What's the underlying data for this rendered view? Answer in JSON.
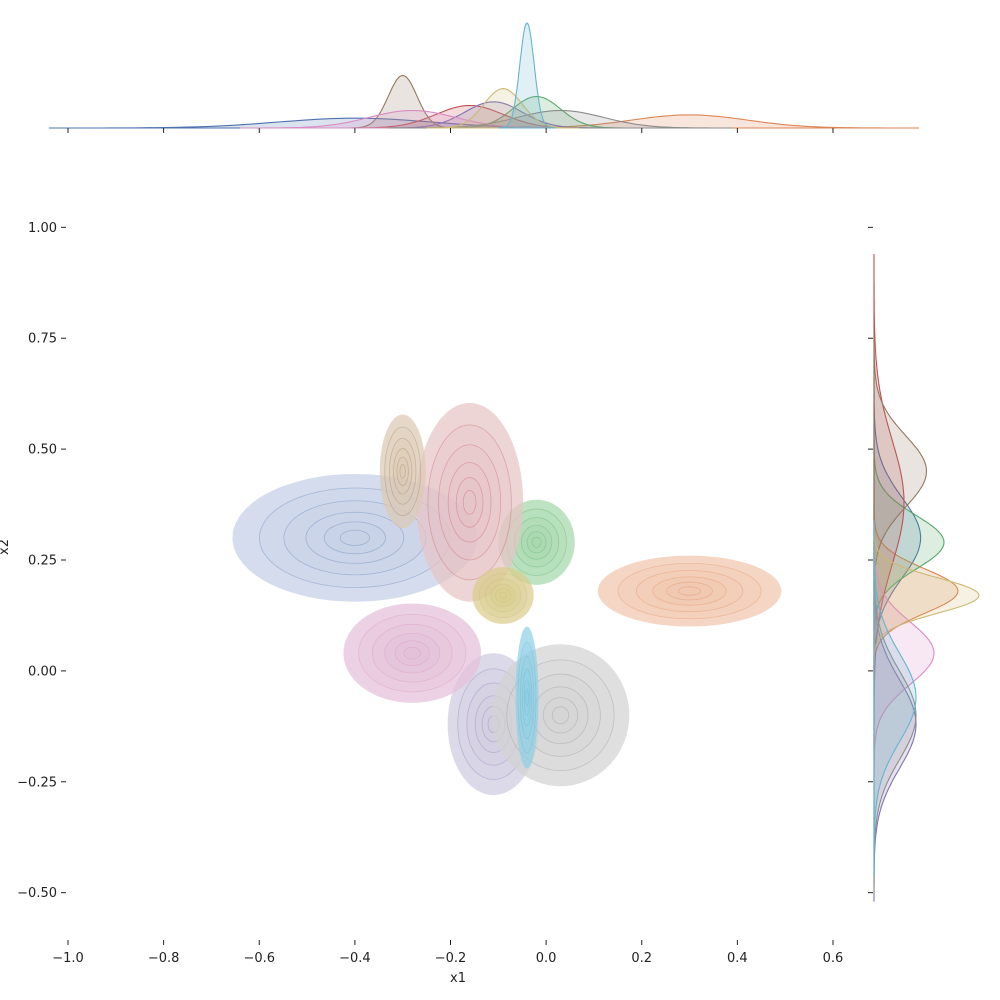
{
  "chart_data": {
    "type": "kde-joint",
    "title": "",
    "xlabel": "x1",
    "ylabel": "x2",
    "xlim": [
      -1.0,
      0.6
    ],
    "ylim": [
      -0.6,
      1.1
    ],
    "x_ticks": [
      -1.0,
      -0.8,
      -0.6,
      -0.4,
      -0.2,
      0.0,
      0.2,
      0.4,
      0.6
    ],
    "x_tick_labels": [
      "−1.0",
      "−0.8",
      "−0.6",
      "−0.4",
      "−0.2",
      "0.0",
      "0.2",
      "0.4",
      "0.6"
    ],
    "y_ticks": [
      1.0,
      0.75,
      0.5,
      0.25,
      0.0,
      -0.25,
      -0.5
    ],
    "y_tick_labels": [
      "1.00",
      "0.75",
      "0.50",
      "0.25",
      "0.00",
      "−0.25",
      "−0.50"
    ],
    "grid": false,
    "legend": "none",
    "series": [
      {
        "color": "#4c72b0",
        "fill": "#c5cfe6",
        "center": [
          -0.4,
          0.3
        ],
        "x_spread": 0.16,
        "y_spread": 0.09
      },
      {
        "color": "#dd8452",
        "fill": "#f1c6ad",
        "center": [
          0.3,
          0.18
        ],
        "x_spread": 0.12,
        "y_spread": 0.05
      },
      {
        "color": "#55a868",
        "fill": "#a5d8ab",
        "center": [
          -0.02,
          0.29
        ],
        "x_spread": 0.05,
        "y_spread": 0.06
      },
      {
        "color": "#c44e52",
        "fill": "#e6c3c5",
        "center": [
          -0.16,
          0.38
        ],
        "x_spread": 0.07,
        "y_spread": 0.14
      },
      {
        "color": "#8172b3",
        "fill": "#cfcbe0",
        "center": [
          -0.11,
          -0.12
        ],
        "x_spread": 0.06,
        "y_spread": 0.1
      },
      {
        "color": "#937860",
        "fill": "#dcc9b4",
        "center": [
          -0.3,
          0.45
        ],
        "x_spread": 0.03,
        "y_spread": 0.08
      },
      {
        "color": "#da8bc3",
        "fill": "#e4bfd9",
        "center": [
          -0.28,
          0.04
        ],
        "x_spread": 0.09,
        "y_spread": 0.07
      },
      {
        "color": "#8c8c8c",
        "fill": "#d3d3d3",
        "center": [
          0.03,
          -0.1
        ],
        "x_spread": 0.09,
        "y_spread": 0.1
      },
      {
        "color": "#ccb974",
        "fill": "#d9cc8c",
        "center": [
          -0.09,
          0.17
        ],
        "x_spread": 0.04,
        "y_spread": 0.04
      },
      {
        "color": "#64b5cd",
        "fill": "#8fd0e6",
        "center": [
          -0.04,
          -0.06
        ],
        "x_spread": 0.015,
        "y_spread": 0.1
      }
    ]
  }
}
